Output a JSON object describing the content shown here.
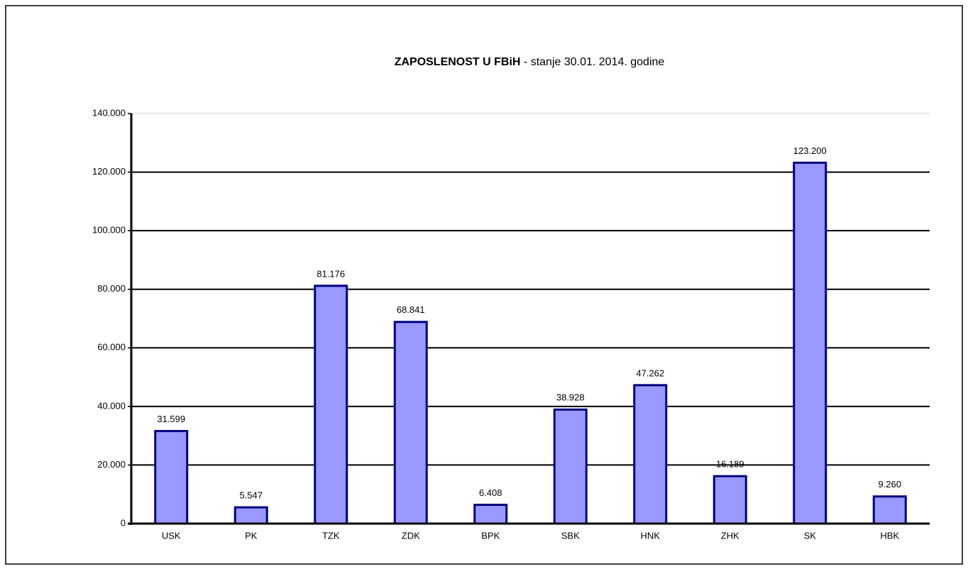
{
  "chart_data": {
    "type": "bar",
    "title": "ZAPOSLENOST U FBiH",
    "subtitle": "- stanje 30.01. 2014. godine",
    "categories": [
      "USK",
      "PK",
      "TZK",
      "ZDK",
      "BPK",
      "SBK",
      "HNK",
      "ZHK",
      "SK",
      "HBK"
    ],
    "values": [
      31599,
      5547,
      81176,
      68841,
      6408,
      38928,
      47262,
      16189,
      123200,
      9260
    ],
    "value_labels": [
      "31.599",
      "5.547",
      "81.176",
      "68.841",
      "6.408",
      "38.928",
      "47.262",
      "16.189",
      "123.200",
      "9.260"
    ],
    "color": "#9999ff",
    "edge_color": "#000080",
    "ylim": [
      0,
      140000
    ],
    "yticks": [
      0,
      {
        "value": 20000,
        "label": "20.000"
      },
      {
        "value": 40000,
        "label": "40.000"
      },
      {
        "value": 60000,
        "label": "60.000"
      },
      {
        "value": 80000,
        "label": "80.000"
      },
      {
        "value": 100000,
        "label": "100.000"
      },
      {
        "value": 120000,
        "label": "120.000"
      },
      {
        "value": 140000,
        "label": "140.000"
      }
    ],
    "grid": true
  }
}
